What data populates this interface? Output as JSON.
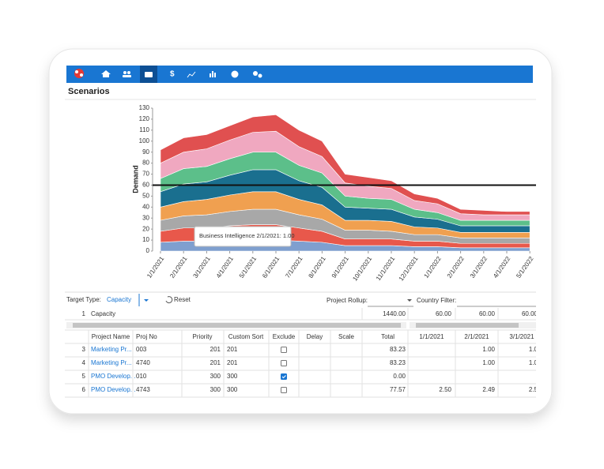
{
  "page_title": "Scenarios",
  "chart_data": {
    "type": "stacked-area",
    "y_label": "Demand",
    "categories": [
      "1/1/2021",
      "2/1/2021",
      "3/1/2021",
      "4/1/2021",
      "5/1/2021",
      "6/1/2021",
      "7/1/2021",
      "8/1/2021",
      "9/1/2021",
      "10/1/2021",
      "11/1/2021",
      "12/1/2021",
      "1/1/2022",
      "2/1/2022",
      "3/1/2022",
      "4/1/2022",
      "5/1/2022"
    ],
    "ylim": [
      0,
      130
    ],
    "yticks": [
      0,
      10,
      20,
      30,
      40,
      50,
      60,
      70,
      80,
      90,
      100,
      110,
      120,
      130
    ],
    "capacity": 60,
    "capacity_color": "#111111",
    "tooltip": "Business Intelligence 2/1/2021: 1.00",
    "series": [
      {
        "color": "#7f9fcf",
        "values": [
          8,
          9,
          9,
          10,
          10,
          10,
          9,
          8,
          5,
          5,
          5,
          4,
          4,
          3,
          3,
          3,
          3
        ]
      },
      {
        "color": "#e8584b",
        "values": [
          10,
          12,
          12,
          13,
          14,
          14,
          12,
          10,
          6,
          6,
          6,
          5,
          5,
          4,
          4,
          4,
          4
        ]
      },
      {
        "color": "#a8a8a8",
        "values": [
          10,
          11,
          12,
          13,
          14,
          14,
          12,
          11,
          8,
          8,
          7,
          6,
          6,
          5,
          5,
          5,
          5
        ]
      },
      {
        "color": "#f0a050",
        "values": [
          12,
          13,
          14,
          15,
          16,
          16,
          14,
          13,
          9,
          9,
          9,
          7,
          6,
          5,
          5,
          5,
          5
        ]
      },
      {
        "color": "#1a6f8f",
        "values": [
          14,
          16,
          16,
          18,
          20,
          20,
          17,
          16,
          12,
          11,
          11,
          9,
          8,
          6,
          6,
          6,
          6
        ]
      },
      {
        "color": "#5cbf8a",
        "values": [
          12,
          14,
          14,
          15,
          16,
          16,
          14,
          13,
          10,
          9,
          9,
          7,
          6,
          5,
          5,
          5,
          5
        ]
      },
      {
        "color": "#f0a8c0",
        "values": [
          14,
          15,
          16,
          17,
          18,
          19,
          17,
          15,
          12,
          11,
          10,
          8,
          8,
          6,
          5,
          5,
          5
        ]
      },
      {
        "color": "#e05050",
        "values": [
          12,
          13,
          13,
          13,
          14,
          15,
          15,
          14,
          8,
          8,
          7,
          6,
          5,
          4,
          4,
          3,
          3
        ]
      }
    ]
  },
  "controls": {
    "target_type_label": "Target Type:",
    "target_type_value": "Capacity",
    "reset": "Reset",
    "project_rollup_label": "Project Rollup:",
    "country_filter_label": "Country Filter:"
  },
  "table": {
    "capacity_row": [
      "1",
      "Capacity",
      "1440.00",
      "60.00",
      "60.00",
      "60.00"
    ],
    "columns": [
      "Project Name",
      "Proj No",
      "Priority",
      "Custom Sort",
      "Exclude",
      "Delay",
      "Scale",
      "Total",
      "1/1/2021",
      "2/1/2021",
      "3/1/2021"
    ],
    "rows": [
      {
        "id": "3",
        "name": "Marketing Pr...",
        "proj_no": "003",
        "priority": "201",
        "custom_sort": "201",
        "exclude": false,
        "total": "83.23",
        "d1": null,
        "d2": "1.00",
        "d3": "1.0"
      },
      {
        "id": "4",
        "name": "Marketing Pr...",
        "proj_no": "4740",
        "priority": "201",
        "custom_sort": "201",
        "exclude": false,
        "total": "83.23",
        "d1": null,
        "d2": "1.00",
        "d3": "1.0"
      },
      {
        "id": "5",
        "name": "PMO Develop...",
        "proj_no": "010",
        "priority": "300",
        "custom_sort": "300",
        "exclude": true,
        "total": "0.00",
        "d1": null,
        "d2": null,
        "d3": null
      },
      {
        "id": "6",
        "name": "PMO Develop...",
        "proj_no": "4743",
        "priority": "300",
        "custom_sort": "300",
        "exclude": false,
        "total": "77.57",
        "d1": "2.50",
        "d2": "2.49",
        "d3": "2.5"
      }
    ]
  }
}
